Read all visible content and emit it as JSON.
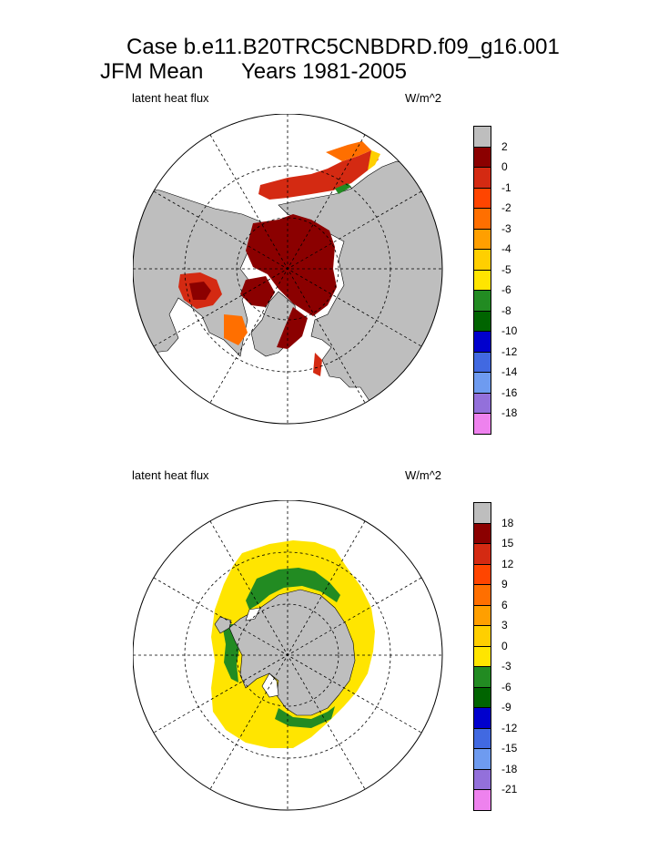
{
  "title_line1": "Case b.e11.B20TRC5CNBDRD.f09_g16.001",
  "title_line2_left": "JFM Mean",
  "title_line2_right": "Years 1981-2005",
  "chart_data": [
    {
      "type": "heatmap",
      "projection": "north polar stereographic",
      "variable": "latent heat flux",
      "units": "W/m^2",
      "colorbar": {
        "colors": [
          "#bebebe",
          "#8b0000",
          "#d42a12",
          "#ff4500",
          "#ff6f00",
          "#ff9f00",
          "#ffcf00",
          "#ffe500",
          "#228b22",
          "#006400",
          "#0000cd",
          "#4169e1",
          "#6e9bf0",
          "#9370db",
          "#ee82ee"
        ],
        "labels": [
          "2",
          "0",
          "-1",
          "-2",
          "-3",
          "-4",
          "-5",
          "-6",
          "-8",
          "-10",
          "-12",
          "-14",
          "-16",
          "-18"
        ]
      }
    },
    {
      "type": "heatmap",
      "projection": "south polar stereographic",
      "variable": "latent heat flux",
      "units": "W/m^2",
      "colorbar": {
        "colors": [
          "#bebebe",
          "#8b0000",
          "#d42a12",
          "#ff4500",
          "#ff6f00",
          "#ff9f00",
          "#ffcf00",
          "#ffe500",
          "#228b22",
          "#006400",
          "#0000cd",
          "#4169e1",
          "#6e9bf0",
          "#9370db",
          "#ee82ee"
        ],
        "labels": [
          "18",
          "15",
          "12",
          "9",
          "6",
          "3",
          "0",
          "-3",
          "-6",
          "-9",
          "-12",
          "-15",
          "-18",
          "-21"
        ]
      }
    }
  ]
}
